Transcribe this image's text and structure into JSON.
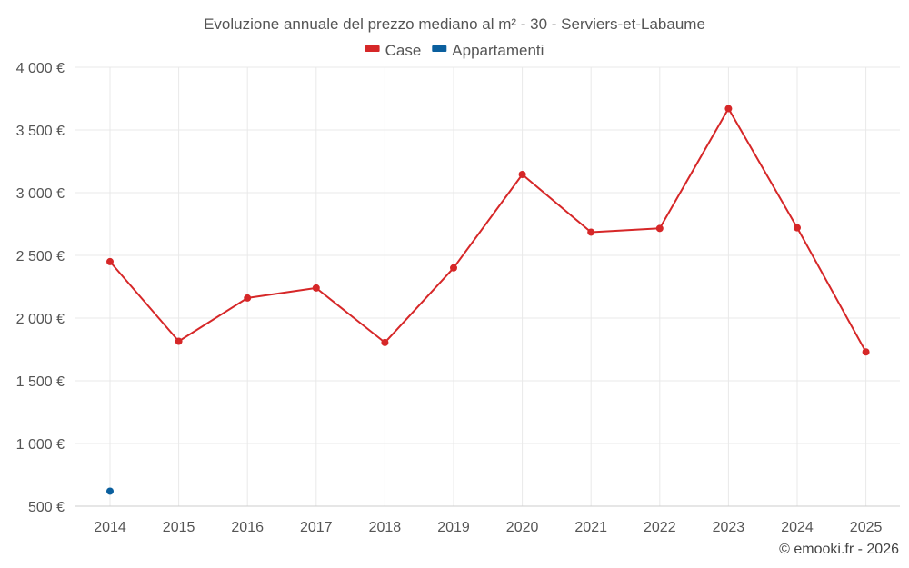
{
  "chart_data": {
    "type": "line",
    "title": "Evoluzione annuale del prezzo mediano al m² - 30 - Serviers-et-Labaume",
    "xlabel": "",
    "ylabel": "",
    "categories": [
      "2014",
      "2015",
      "2016",
      "2017",
      "2018",
      "2019",
      "2020",
      "2021",
      "2022",
      "2023",
      "2024",
      "2025"
    ],
    "ylim": [
      500,
      4000
    ],
    "yticks": [
      500,
      1000,
      1500,
      2000,
      2500,
      3000,
      3500,
      4000
    ],
    "ytick_labels": [
      "500 €",
      "1 000 €",
      "1 500 €",
      "2 000 €",
      "2 500 €",
      "3 000 €",
      "3 500 €",
      "4 000 €"
    ],
    "grid": true,
    "legend_position": "top-center",
    "series": [
      {
        "name": "Case",
        "color": "#d62728",
        "values": [
          2450,
          1815,
          2160,
          2240,
          1805,
          2400,
          3145,
          2685,
          2715,
          3670,
          2720,
          1730
        ]
      },
      {
        "name": "Appartamenti",
        "color": "#0a5f9e",
        "values": [
          620,
          null,
          null,
          null,
          null,
          null,
          null,
          null,
          null,
          null,
          null,
          null
        ]
      }
    ],
    "credit": "© emooki.fr - 2026"
  }
}
